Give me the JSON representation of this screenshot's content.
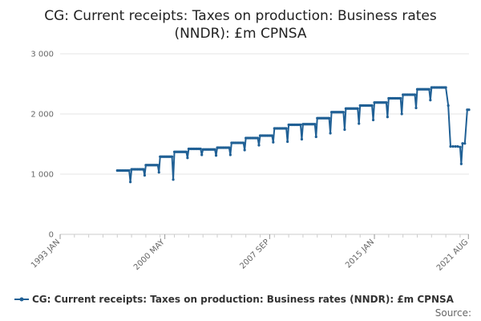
{
  "chart_data": {
    "type": "line",
    "title_lines": [
      "CG: Current receipts: Taxes on production: Business rates",
      "(NNDR): £m CPNSA"
    ],
    "series": [
      {
        "name": "CG: Current receipts: Taxes on production: Business rates (NNDR): £m CPNSA",
        "color": "#206095",
        "annual_levels": [
          {
            "year": 1997,
            "value": 1060
          },
          {
            "year": 1998,
            "value": 1080
          },
          {
            "year": 1999,
            "value": 1150
          },
          {
            "year": 2000,
            "value": 1290
          },
          {
            "year": 2001,
            "value": 1370
          },
          {
            "year": 2002,
            "value": 1420
          },
          {
            "year": 2003,
            "value": 1410
          },
          {
            "year": 2004,
            "value": 1440
          },
          {
            "year": 2005,
            "value": 1520
          },
          {
            "year": 2006,
            "value": 1600
          },
          {
            "year": 2007,
            "value": 1640
          },
          {
            "year": 2008,
            "value": 1760
          },
          {
            "year": 2009,
            "value": 1820
          },
          {
            "year": 2010,
            "value": 1830
          },
          {
            "year": 2011,
            "value": 1930
          },
          {
            "year": 2012,
            "value": 2030
          },
          {
            "year": 2013,
            "value": 2090
          },
          {
            "year": 2014,
            "value": 2140
          },
          {
            "year": 2015,
            "value": 2190
          },
          {
            "year": 2016,
            "value": 2260
          },
          {
            "year": 2017,
            "value": 2320
          },
          {
            "year": 2018,
            "value": 2410
          },
          {
            "year": 2019,
            "value": 2440
          }
        ],
        "year_end_dips": [
          {
            "year": 1997,
            "value": 870
          },
          {
            "year": 1998,
            "value": 980
          },
          {
            "year": 1999,
            "value": 1030
          },
          {
            "year": 2000,
            "value": 910
          },
          {
            "year": 2001,
            "value": 1270
          },
          {
            "year": 2002,
            "value": 1320
          },
          {
            "year": 2003,
            "value": 1310
          },
          {
            "year": 2004,
            "value": 1320
          },
          {
            "year": 2005,
            "value": 1400
          },
          {
            "year": 2006,
            "value": 1480
          },
          {
            "year": 2007,
            "value": 1530
          },
          {
            "year": 2008,
            "value": 1540
          },
          {
            "year": 2009,
            "value": 1580
          },
          {
            "year": 2010,
            "value": 1620
          },
          {
            "year": 2011,
            "value": 1680
          },
          {
            "year": 2012,
            "value": 1740
          },
          {
            "year": 2013,
            "value": 1840
          },
          {
            "year": 2014,
            "value": 1900
          },
          {
            "year": 2015,
            "value": 1950
          },
          {
            "year": 2016,
            "value": 2000
          },
          {
            "year": 2017,
            "value": 2100
          },
          {
            "year": 2018,
            "value": 2230
          }
        ],
        "tail_points": [
          {
            "t": 2020.0,
            "value": 2440
          },
          {
            "t": 2020.17,
            "value": 2140
          },
          {
            "t": 2020.33,
            "value": 1460
          },
          {
            "t": 2020.5,
            "value": 1460
          },
          {
            "t": 2020.67,
            "value": 1460
          },
          {
            "t": 2020.83,
            "value": 1460
          },
          {
            "t": 2021.0,
            "value": 1450
          },
          {
            "t": 2021.08,
            "value": 1170
          },
          {
            "t": 2021.17,
            "value": 1510
          },
          {
            "t": 2021.33,
            "value": 1510
          },
          {
            "t": 2021.5,
            "value": 2070
          },
          {
            "t": 2021.62,
            "value": 2070
          }
        ]
      }
    ],
    "x_axis": {
      "range": [
        1993.0,
        2021.62
      ],
      "tick_labels": [
        {
          "label": "1993 JAN",
          "t": 1993.0
        },
        {
          "label": "2000 MAY",
          "t": 2000.33
        },
        {
          "label": "2007 SEP",
          "t": 2007.67
        },
        {
          "label": "2015 JAN",
          "t": 2015.0
        },
        {
          "label": "2021 AUG",
          "t": 2021.58
        }
      ]
    },
    "y_axis": {
      "range": [
        0,
        3000
      ],
      "ticks": [
        0,
        1000,
        2000,
        3000
      ],
      "tick_labels": [
        "0",
        "1 000",
        "2 000",
        "3 000"
      ]
    },
    "legend": {
      "position": "bottom",
      "label": "CG: Current receipts: Taxes on production: Business rates (NNDR): £m CPNSA"
    },
    "source_label": "Source:"
  }
}
